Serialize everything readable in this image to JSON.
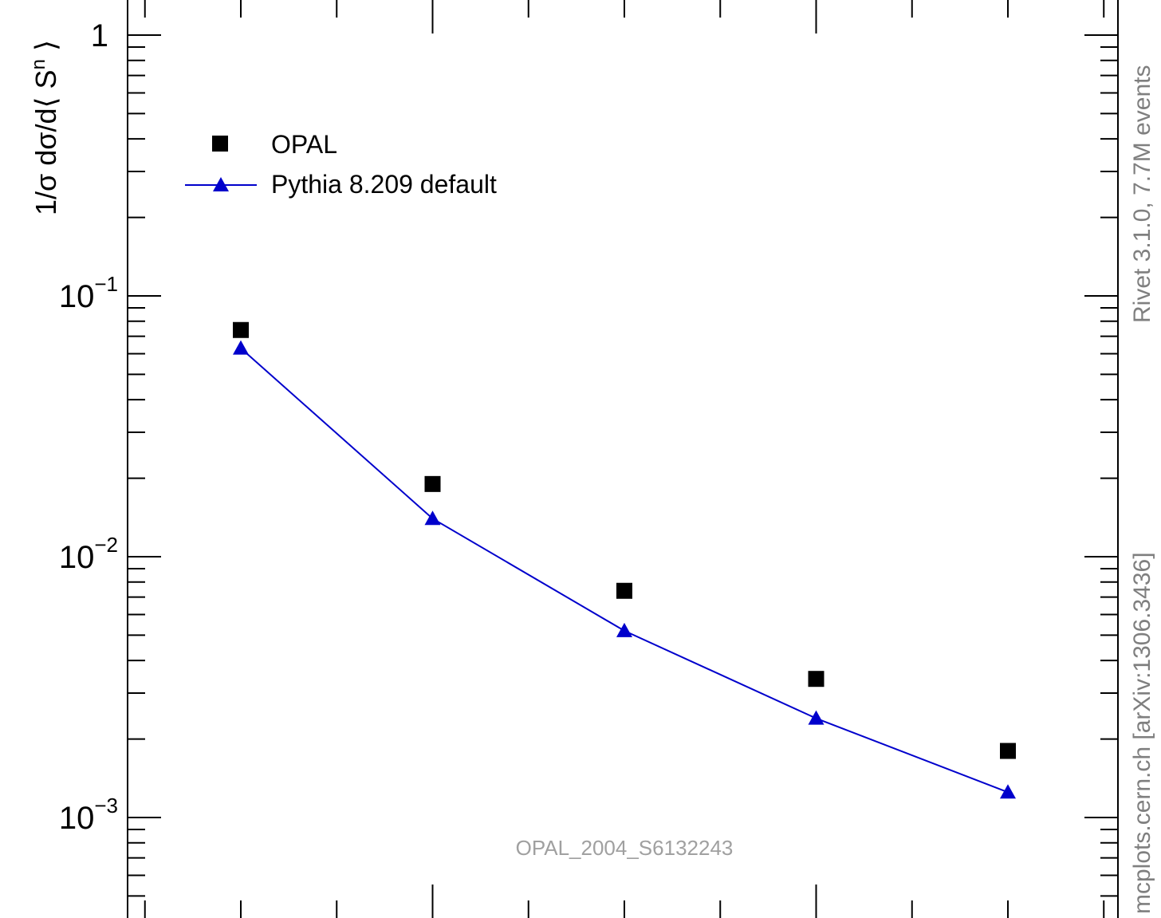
{
  "chart_data": {
    "type": "scatter",
    "log_y": true,
    "ylim": [
      0.0004,
      1.3
    ],
    "xlim": [
      0.5,
      5.5
    ],
    "y_tick_labels": [
      {
        "base": "1",
        "exp": "",
        "value": 1
      },
      {
        "base": "10",
        "exp": "−1",
        "value": 0.1
      },
      {
        "base": "10",
        "exp": "−2",
        "value": 0.01
      },
      {
        "base": "10",
        "exp": "−3",
        "value": 0.001
      }
    ],
    "ylabel": {
      "pre": "1/σ dσ/d⟨ S",
      "sup": "n",
      "post": " ⟩"
    },
    "series": [
      {
        "name": "OPAL",
        "marker": "square",
        "color": "#000000",
        "x": [
          1,
          2,
          3,
          4,
          5
        ],
        "values": [
          0.074,
          0.019,
          0.0074,
          0.0034,
          0.0018
        ]
      },
      {
        "name": "Pythia 8.209 default",
        "marker": "triangle",
        "line": true,
        "color": "#0000cc",
        "x": [
          1,
          2,
          3,
          4,
          5
        ],
        "values": [
          0.063,
          0.014,
          0.0052,
          0.0024,
          0.00125
        ]
      }
    ],
    "legend_position": "top-left",
    "annotations": {
      "watermark": "OPAL_2004_S6132243",
      "side_top": "Rivet 3.1.0,  7.7M events",
      "side_bottom": "mcplots.cern.ch [arXiv:1306.3436]"
    }
  }
}
